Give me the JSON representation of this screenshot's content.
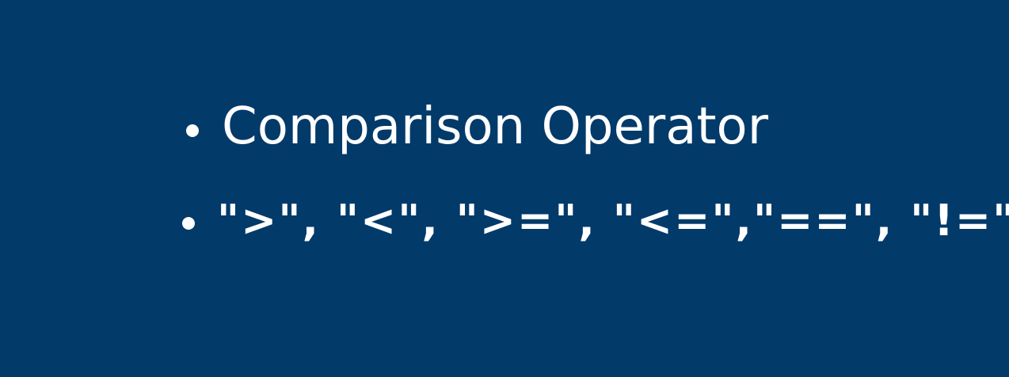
{
  "bullets": [
    "Comparison Operator",
    "\">\", \"<\", \">=\", \"<=\",\"==\", \"!=\""
  ]
}
